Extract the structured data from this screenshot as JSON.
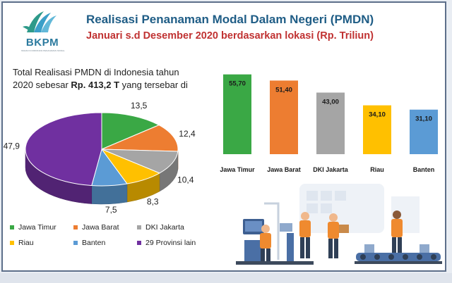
{
  "header": {
    "logo_text": "BKPM",
    "logo_subtext": "BADAN KOORDINASI PENANAMAN MODAL",
    "title": "Realisasi Penanaman Modal Dalam Negeri (PMDN)",
    "subtitle": "Januari s.d Desember 2020 berdasarkan lokasi (Rp. Triliun)"
  },
  "summary": {
    "line1": "Total Realisasi PMDN di Indonesia tahun",
    "line2_prefix": "2020 sebesar ",
    "line2_bold": "Rp. 413,2 T",
    "line2_suffix": " yang tersebar di"
  },
  "colors": {
    "jawa_timur": "#3aa845",
    "jawa_barat": "#ed7d31",
    "dki_jakarta": "#a5a5a5",
    "riau": "#ffc000",
    "banten": "#5b9bd5",
    "provinsi_lain": "#7030a0",
    "title": "#1f5d86",
    "subtitle": "#c03232"
  },
  "chart_data": [
    {
      "type": "pie",
      "style": "3d",
      "slices": [
        {
          "label": "Jawa Timur",
          "value": 13.5,
          "display": "13,5",
          "color": "#3aa845"
        },
        {
          "label": "Jawa Barat",
          "value": 12.4,
          "display": "12,4",
          "color": "#ed7d31"
        },
        {
          "label": "DKI Jakarta",
          "value": 10.4,
          "display": "10,4",
          "color": "#a5a5a5"
        },
        {
          "label": "Riau",
          "value": 8.3,
          "display": "8,3",
          "color": "#ffc000"
        },
        {
          "label": "Banten",
          "value": 7.5,
          "display": "7,5",
          "color": "#5b9bd5"
        },
        {
          "label": "29 Provinsi lain",
          "value": 47.9,
          "display": "47,9",
          "color": "#7030a0"
        }
      ],
      "legend_placement": "bottom"
    },
    {
      "type": "bar",
      "categories": [
        "Jawa Timur",
        "Jawa Barat",
        "DKI Jakarta",
        "Riau",
        "Banten"
      ],
      "values": [
        55.7,
        51.4,
        43.0,
        34.1,
        31.1
      ],
      "value_labels": [
        "55,70",
        "51,40",
        "43,00",
        "34,10",
        "31,10"
      ],
      "colors": [
        "#3aa845",
        "#ed7d31",
        "#a5a5a5",
        "#ffc000",
        "#5b9bd5"
      ],
      "ylim": [
        0,
        58
      ],
      "grid": false
    }
  ],
  "illustration": "factory-workers-conveyor"
}
